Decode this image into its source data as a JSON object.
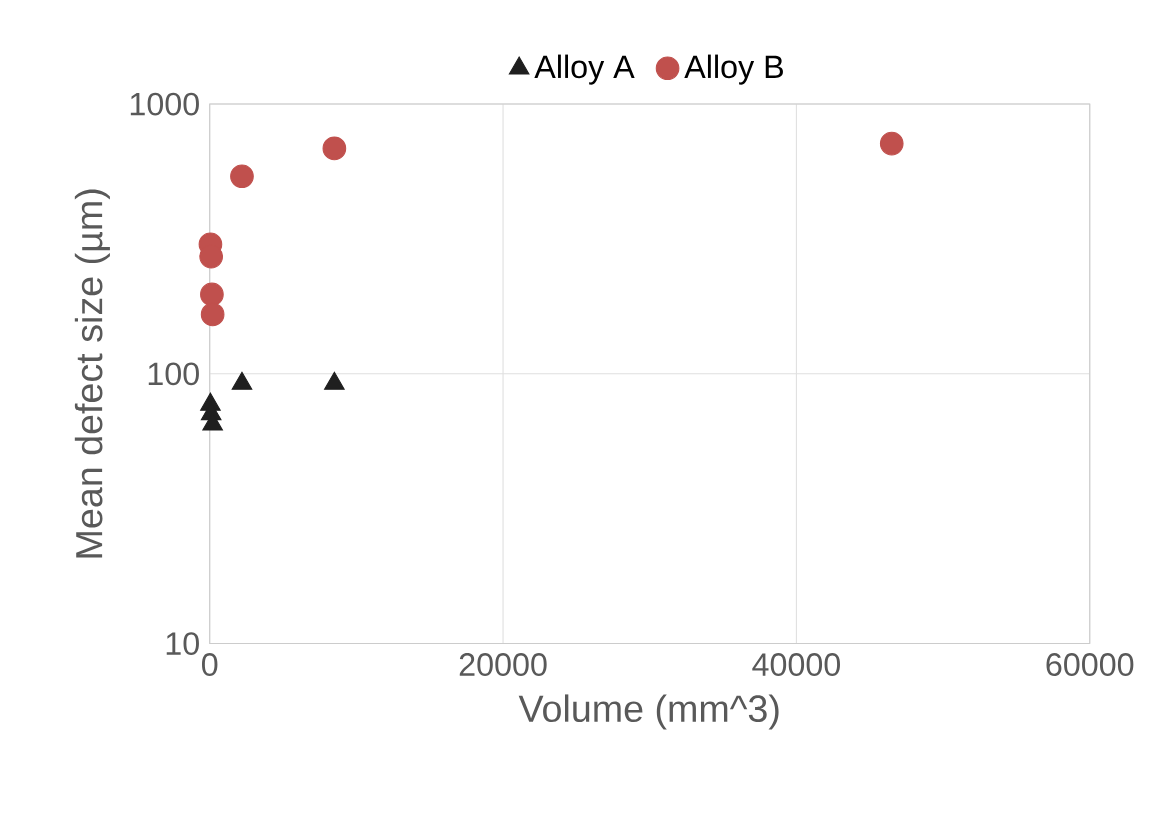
{
  "chart_data": {
    "type": "scatter",
    "xlabel": "Volume (mm^3)",
    "ylabel": "Mean defect size (µm)",
    "series": [
      {
        "name": "Alloy A",
        "color": "#1f1f1f",
        "marker": "triangle",
        "x": [
          50,
          100,
          200,
          2200,
          8500
        ],
        "values": [
          77,
          71,
          65,
          92,
          92
        ]
      },
      {
        "name": "Alloy B",
        "color": "#c0504d",
        "marker": "circle",
        "x": [
          50,
          100,
          150,
          200,
          2200,
          8500,
          46500
        ],
        "values": [
          302,
          272,
          197,
          166,
          540,
          685,
          714
        ]
      }
    ],
    "xlim": [
      0,
      60000
    ],
    "xticks": [
      0,
      20000,
      40000,
      60000
    ],
    "ylim": [
      10,
      1000
    ],
    "yticks": [
      10,
      100,
      1000
    ],
    "log": "y",
    "grid": true,
    "legend": "top"
  }
}
